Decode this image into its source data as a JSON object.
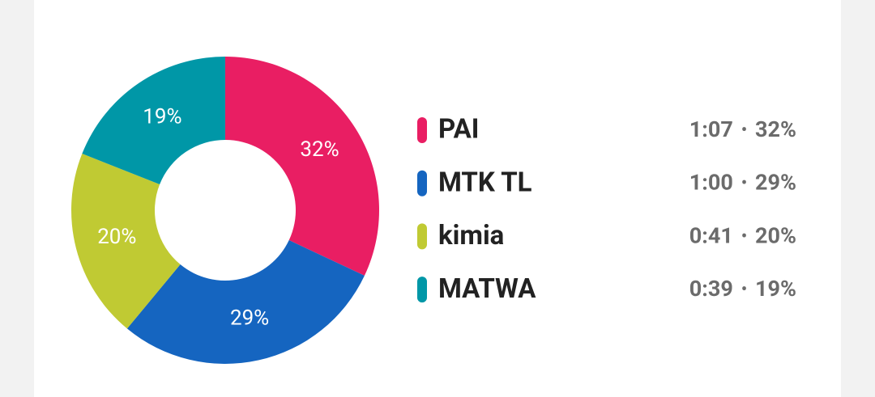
{
  "chart_data": {
    "type": "donut",
    "categories": [
      "PAI",
      "MTK TL",
      "kimia",
      "MATWA"
    ],
    "values": [
      32,
      29,
      20,
      19
    ],
    "value_labels": [
      "32%",
      "29%",
      "20%",
      "19%"
    ],
    "durations": [
      "1:07",
      "1:00",
      "0:41",
      "0:39"
    ],
    "separator": "•",
    "colors": [
      "#e91e63",
      "#1565c0",
      "#c0ca33",
      "#0097a7"
    ]
  }
}
